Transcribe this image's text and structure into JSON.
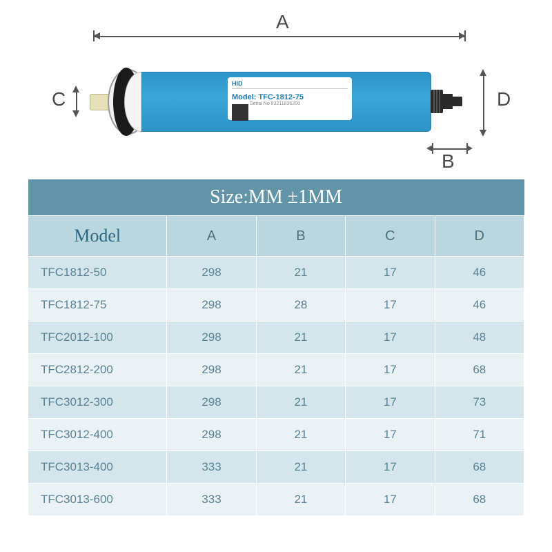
{
  "diagram": {
    "labels": {
      "A": "A",
      "B": "B",
      "C": "C",
      "D": "D"
    },
    "product_label": {
      "brand": "HID",
      "model_prefix": "Model:",
      "model": "TFC-1812-75",
      "serial_prefix": "Serial No",
      "serial": "83211836200"
    },
    "colors": {
      "body": "#3aa5d8",
      "stem": "#e6e0b8",
      "nozzle": "#2b2b2b",
      "dim_line": "#555555",
      "label_text": "#4a4a4a"
    }
  },
  "table": {
    "title": "Size:MM  ±1MM",
    "columns": [
      "Model",
      "A",
      "B",
      "C",
      "D"
    ],
    "rows": [
      [
        "TFC1812-50",
        "298",
        "21",
        "17",
        "46"
      ],
      [
        "TFC1812-75",
        "298",
        "28",
        "17",
        "46"
      ],
      [
        "TFC2012-100",
        "298",
        "21",
        "17",
        "48"
      ],
      [
        "TFC2812-200",
        "298",
        "21",
        "17",
        "68"
      ],
      [
        "TFC3012-300",
        "298",
        "21",
        "17",
        "73"
      ],
      [
        "TFC3012-400",
        "298",
        "21",
        "17",
        "71"
      ],
      [
        "TFC3013-400",
        "333",
        "21",
        "17",
        "68"
      ],
      [
        "TFC3013-600",
        "333",
        "21",
        "17",
        "68"
      ]
    ],
    "colors": {
      "title_bg": "#6294a8",
      "title_fg": "#ffffff",
      "header_bg": "#bad6df",
      "header_fg": "#4a7080",
      "row_odd_bg": "#d4e5eb",
      "row_even_bg": "#eaf2f5",
      "cell_fg": "#5a8295",
      "border": "#ffffff"
    },
    "font": {
      "title_size_pt": 21,
      "header_size_pt": 15,
      "cell_size_pt": 13
    }
  }
}
